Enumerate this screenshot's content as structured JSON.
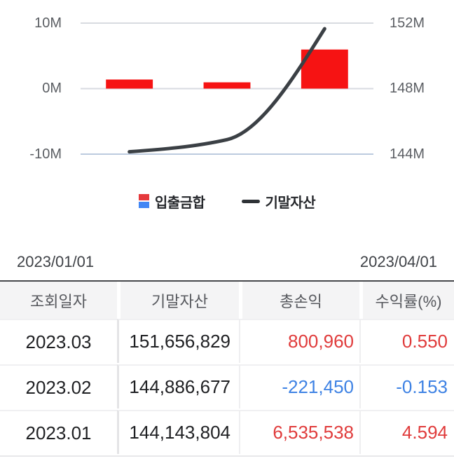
{
  "chart": {
    "legend": [
      {
        "label": "입출금합",
        "swatch": "bar-red-blue",
        "colors": [
          "#e5393c",
          "#4186f4"
        ]
      },
      {
        "label": "기말자산",
        "swatch": "black-line",
        "color": "#2e3236"
      }
    ],
    "range_start": "2023/01/01",
    "range_end": "2023/04/01"
  },
  "chart_data": {
    "type": "bar",
    "subtype": "bar+line combo, dual axis",
    "categories": [
      "2023.01",
      "2023.02",
      "2023.03"
    ],
    "series": [
      {
        "name": "입출금합",
        "type": "bar",
        "axis": "left",
        "color": "#f61313",
        "values": [
          1390000,
          964000,
          5969000
        ]
      },
      {
        "name": "기말자산",
        "type": "line",
        "axis": "right",
        "color": "#3b4045",
        "values": [
          144143804,
          144886677,
          151656829
        ]
      }
    ],
    "left_axis": {
      "ticks": [
        "10M",
        "0M",
        "-10M"
      ],
      "max": 10000000,
      "min": -10000000
    },
    "right_axis": {
      "ticks": [
        "152M",
        "148M",
        "144M"
      ],
      "max": 152000000,
      "min": 144000000
    },
    "x_range": [
      "2023/01/01",
      "2023/04/01"
    ],
    "grid": "horizontal, 3 lines",
    "legend_position": "bottom"
  },
  "table": {
    "headers": [
      "조회일자",
      "기말자산",
      "총손익",
      "수익률(%)"
    ],
    "colors": {
      "gain": "#e03b3b",
      "loss": "#3e82e4"
    },
    "rows": [
      {
        "date": "2023.03",
        "assets": "151,656,829",
        "pnl": "800,960",
        "pnl_color": "#e03b3b",
        "rate": "0.550",
        "rate_color": "#e03b3b"
      },
      {
        "date": "2023.02",
        "assets": "144,886,677",
        "pnl": "-221,450",
        "pnl_color": "#3e82e4",
        "rate": "-0.153",
        "rate_color": "#3e82e4"
      },
      {
        "date": "2023.01",
        "assets": "144,143,804",
        "pnl": "6,535,538",
        "pnl_color": "#e03b3b",
        "rate": "4.594",
        "rate_color": "#e03b3b"
      }
    ]
  }
}
